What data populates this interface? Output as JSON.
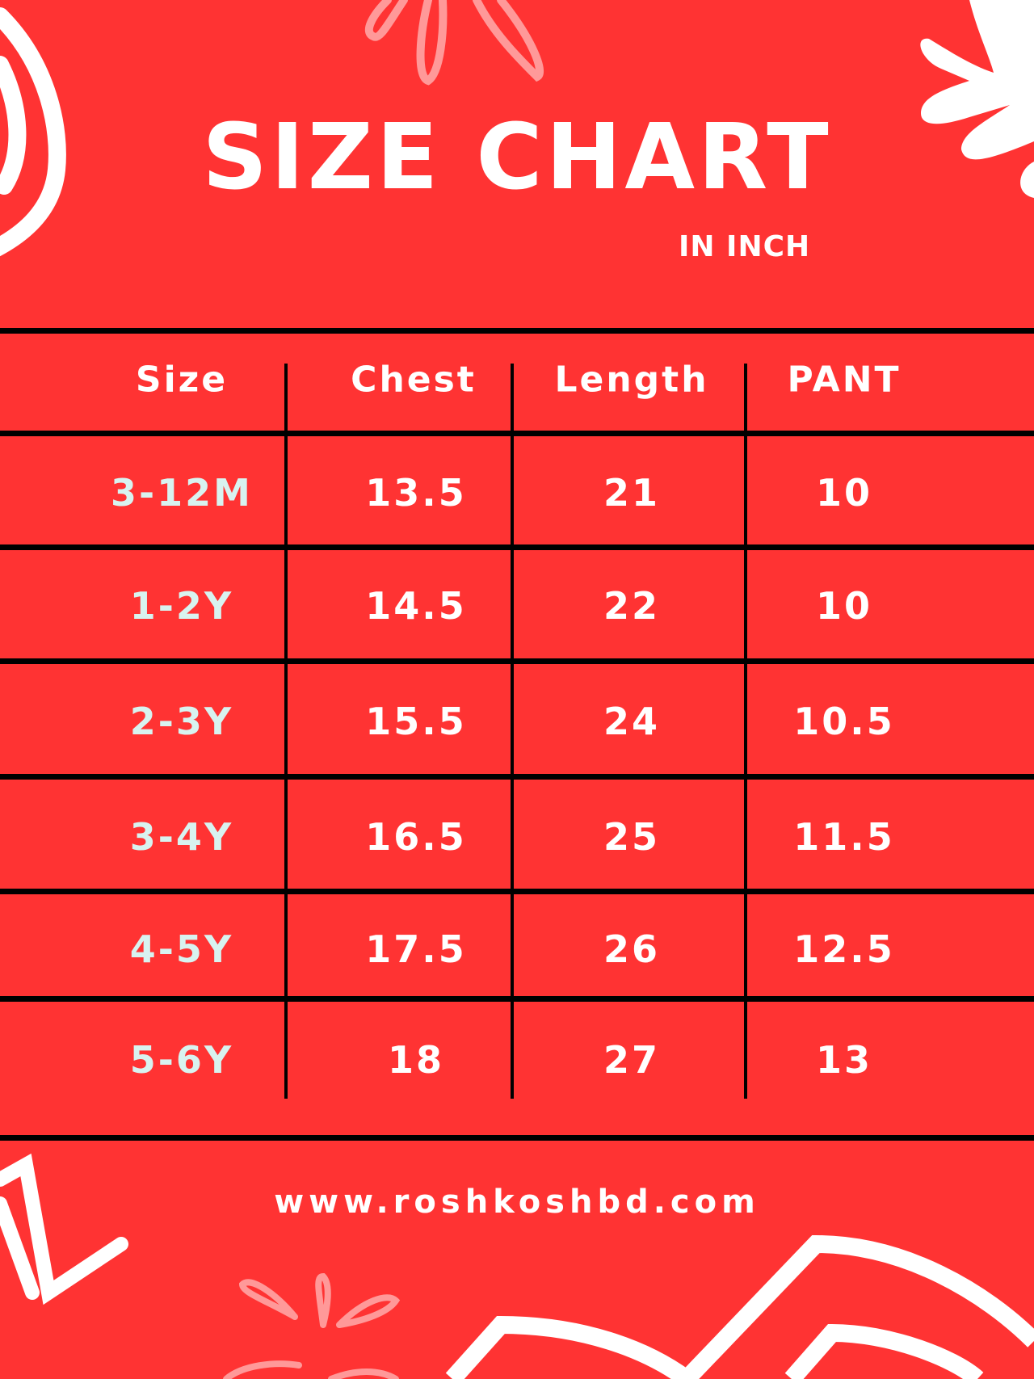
{
  "title": "SIZE CHART",
  "subtitle": "IN INCH",
  "colors": {
    "background": "#ff3333",
    "text": "#ffffff",
    "size_text": "#d8f3f0",
    "lines": "#000000",
    "flower": "#ff9999"
  },
  "table": {
    "headers": [
      "Size",
      "Chest",
      "Length",
      "PANT"
    ],
    "rows": [
      [
        "3-12M",
        "13.5",
        "21",
        "10"
      ],
      [
        "1-2Y",
        "14.5",
        "22",
        "10"
      ],
      [
        "2-3Y",
        "15.5",
        "24",
        "10.5"
      ],
      [
        "3-4Y",
        "16.5",
        "25",
        "11.5"
      ],
      [
        "4-5Y",
        "17.5",
        "26",
        "12.5"
      ],
      [
        "5-6Y",
        "18",
        "27",
        "13"
      ]
    ]
  },
  "website": "www.roshkoshbd.com"
}
